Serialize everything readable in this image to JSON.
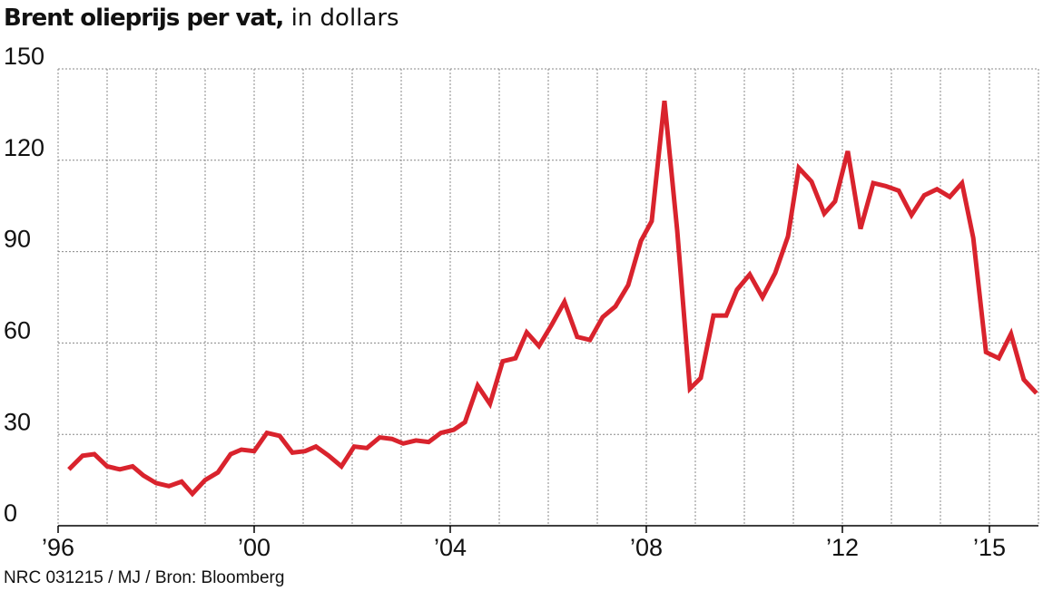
{
  "chart_data": {
    "type": "line",
    "title": "Brent olieprijs per vat,",
    "subtitle": "in dollars",
    "source": "NRC 031215 / MJ / Bron: Bloomberg",
    "xlim": [
      1996,
      2016
    ],
    "xticks": [
      {
        "value": 1996,
        "label": "’96"
      },
      {
        "value": 2000,
        "label": "’00"
      },
      {
        "value": 2004,
        "label": "’04"
      },
      {
        "value": 2008,
        "label": "’08"
      },
      {
        "value": 2012,
        "label": "’12"
      },
      {
        "value": 2015,
        "label": "’15"
      }
    ],
    "x_minor_ticks": [
      1997,
      1998,
      1999,
      2001,
      2002,
      2003,
      2005,
      2006,
      2007,
      2009,
      2010,
      2011,
      2013,
      2014,
      2016
    ],
    "ylim": [
      0,
      150
    ],
    "yticks": [
      0,
      30,
      60,
      90,
      120,
      150
    ],
    "grid": true,
    "x": [
      1996.22,
      1996.5,
      1996.74,
      1997.0,
      1997.26,
      1997.52,
      1997.74,
      1998.0,
      1998.26,
      1998.52,
      1998.74,
      1999.0,
      1999.26,
      1999.52,
      1999.74,
      2000.0,
      2000.26,
      2000.52,
      2000.78,
      2001.04,
      2001.26,
      2001.52,
      2001.78,
      2002.04,
      2002.3,
      2002.56,
      2002.81,
      2003.04,
      2003.3,
      2003.56,
      2003.81,
      2004.07,
      2004.3,
      2004.56,
      2004.81,
      2005.07,
      2005.33,
      2005.56,
      2005.81,
      2006.07,
      2006.33,
      2006.59,
      2006.85,
      2007.11,
      2007.37,
      2007.63,
      2007.89,
      2008.11,
      2008.37,
      2008.63,
      2008.89,
      2009.11,
      2009.37,
      2009.63,
      2009.85,
      2010.11,
      2010.37,
      2010.63,
      2010.89,
      2011.11,
      2011.37,
      2011.63,
      2011.85,
      2012.11,
      2012.37,
      2012.63,
      2012.89,
      2013.15,
      2013.41,
      2013.67,
      2013.93,
      2014.19,
      2014.44,
      2014.67,
      2014.93,
      2015.19,
      2015.44,
      2015.7,
      2015.96
    ],
    "series": [
      {
        "name": "Brent",
        "color": "#d9232d",
        "values": [
          18.5,
          23,
          23.5,
          19.5,
          18.5,
          19.5,
          16.5,
          14,
          13,
          14.5,
          10.5,
          15,
          17.5,
          23.5,
          25,
          24.5,
          30.5,
          29.5,
          24,
          24.5,
          26,
          23,
          19.5,
          26,
          25.5,
          29,
          28.5,
          27,
          28,
          27.5,
          30.5,
          31.5,
          34,
          46,
          40,
          54,
          55,
          63.5,
          59,
          66,
          73.5,
          62,
          61,
          68.5,
          72,
          79,
          93.5,
          100,
          139.5,
          97,
          45,
          48.5,
          69,
          69,
          77.5,
          82.5,
          75,
          83,
          95,
          117.5,
          113,
          102.5,
          106.5,
          123,
          97.5,
          112.5,
          111.5,
          110,
          102,
          108.5,
          110.5,
          108,
          112.5,
          94.5,
          57,
          55,
          63,
          48,
          43.5
        ]
      }
    ]
  }
}
